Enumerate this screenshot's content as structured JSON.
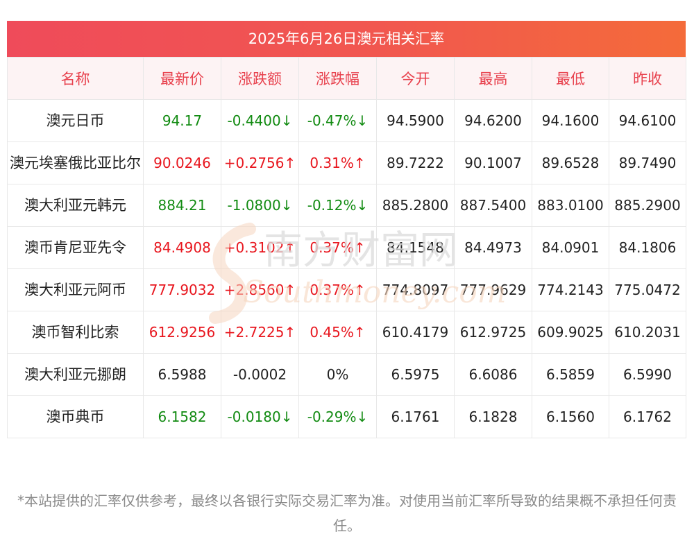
{
  "title": "2025年6月26日澳元相关汇率",
  "headers": [
    "名称",
    "最新价",
    "涨跌额",
    "涨跌幅",
    "今开",
    "最高",
    "最低",
    "昨收"
  ],
  "rows": [
    {
      "name": "澳元日币",
      "latest": "94.17",
      "change": "-0.4400↓",
      "pct": "-0.47%↓",
      "open": "94.5900",
      "high": "94.6200",
      "low": "94.1600",
      "prev": "94.6100",
      "dir": "down"
    },
    {
      "name": "澳元埃塞俄比亚比尔",
      "latest": "90.0246",
      "change": "+0.2756↑",
      "pct": "0.31%↑",
      "open": "89.7222",
      "high": "90.1007",
      "low": "89.6528",
      "prev": "89.7490",
      "dir": "up"
    },
    {
      "name": "澳大利亚元韩元",
      "latest": "884.21",
      "change": "-1.0800↓",
      "pct": "-0.12%↓",
      "open": "885.2800",
      "high": "887.5400",
      "low": "883.0100",
      "prev": "885.2900",
      "dir": "down"
    },
    {
      "name": "澳币肯尼亚先令",
      "latest": "84.4908",
      "change": "+0.3102↑",
      "pct": "0.37%↑",
      "open": "84.1548",
      "high": "84.4973",
      "low": "84.0901",
      "prev": "84.1806",
      "dir": "up"
    },
    {
      "name": "澳大利亚元阿币",
      "latest": "777.9032",
      "change": "+2.8560↑",
      "pct": "0.37%↑",
      "open": "774.8097",
      "high": "777.9629",
      "low": "774.2143",
      "prev": "775.0472",
      "dir": "up"
    },
    {
      "name": "澳币智利比索",
      "latest": "612.9256",
      "change": "+2.7225↑",
      "pct": "0.45%↑",
      "open": "610.4179",
      "high": "612.9725",
      "low": "609.9025",
      "prev": "610.2031",
      "dir": "up"
    },
    {
      "name": "澳大利亚元挪朗",
      "latest": "6.5988",
      "change": "-0.0002",
      "pct": "0%",
      "open": "6.5975",
      "high": "6.6086",
      "low": "6.5859",
      "prev": "6.5990",
      "dir": "flat"
    },
    {
      "name": "澳币典币",
      "latest": "6.1582",
      "change": "-0.0180↓",
      "pct": "-0.29%↓",
      "open": "6.1761",
      "high": "6.1828",
      "low": "6.1560",
      "prev": "6.1762",
      "dir": "down"
    }
  ],
  "disclaimer": "*本站提供的汇率仅供参考，最终以各银行实际交易汇率为准。对使用当前汇率所导致的结果概不承担任何责任。",
  "watermark": {
    "cn": "南方财富网",
    "en": "Southmoney.com"
  },
  "colors": {
    "up": "#e8161e",
    "down": "#128b12",
    "header_text": "#e8424e",
    "title_bar_start": "#ef4b5a",
    "title_bar_end": "#f46b3a"
  }
}
